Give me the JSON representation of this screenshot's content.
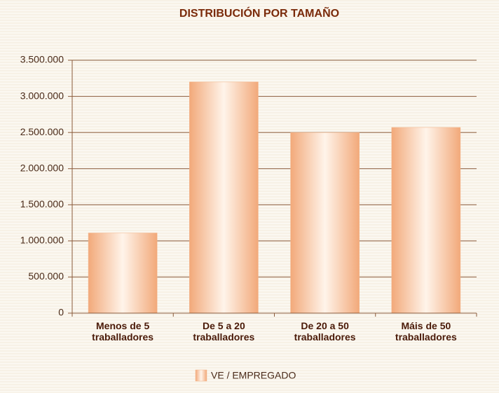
{
  "chart_data": {
    "type": "bar",
    "title": "DISTRIBUCIÓN POR TAMAÑO",
    "categories": [
      "Menos de 5\ntraballadores",
      "De 5 a 20\ntraballadores",
      "De 20 a 50\ntraballadores",
      "Máis de 50\ntraballadores"
    ],
    "series": [
      {
        "name": "VE / EMPREGADO",
        "color": "#f2b48a",
        "values": [
          1110000,
          3200000,
          2500000,
          2570000
        ]
      }
    ],
    "ylim": [
      0,
      3500000
    ],
    "yticks": [
      0,
      {
        "value": 500000,
        "label": "500.000"
      },
      {
        "value": 1000000,
        "label": "1.000.000"
      },
      {
        "value": 1500000,
        "label": "1.500.000"
      },
      {
        "value": 2000000,
        "label": "2.000.000"
      },
      {
        "value": 2500000,
        "label": "2.500.000"
      },
      {
        "value": 3000000,
        "label": "3.000.000"
      },
      {
        "value": 3500000,
        "label": "3.500.000"
      }
    ],
    "grid": true
  }
}
